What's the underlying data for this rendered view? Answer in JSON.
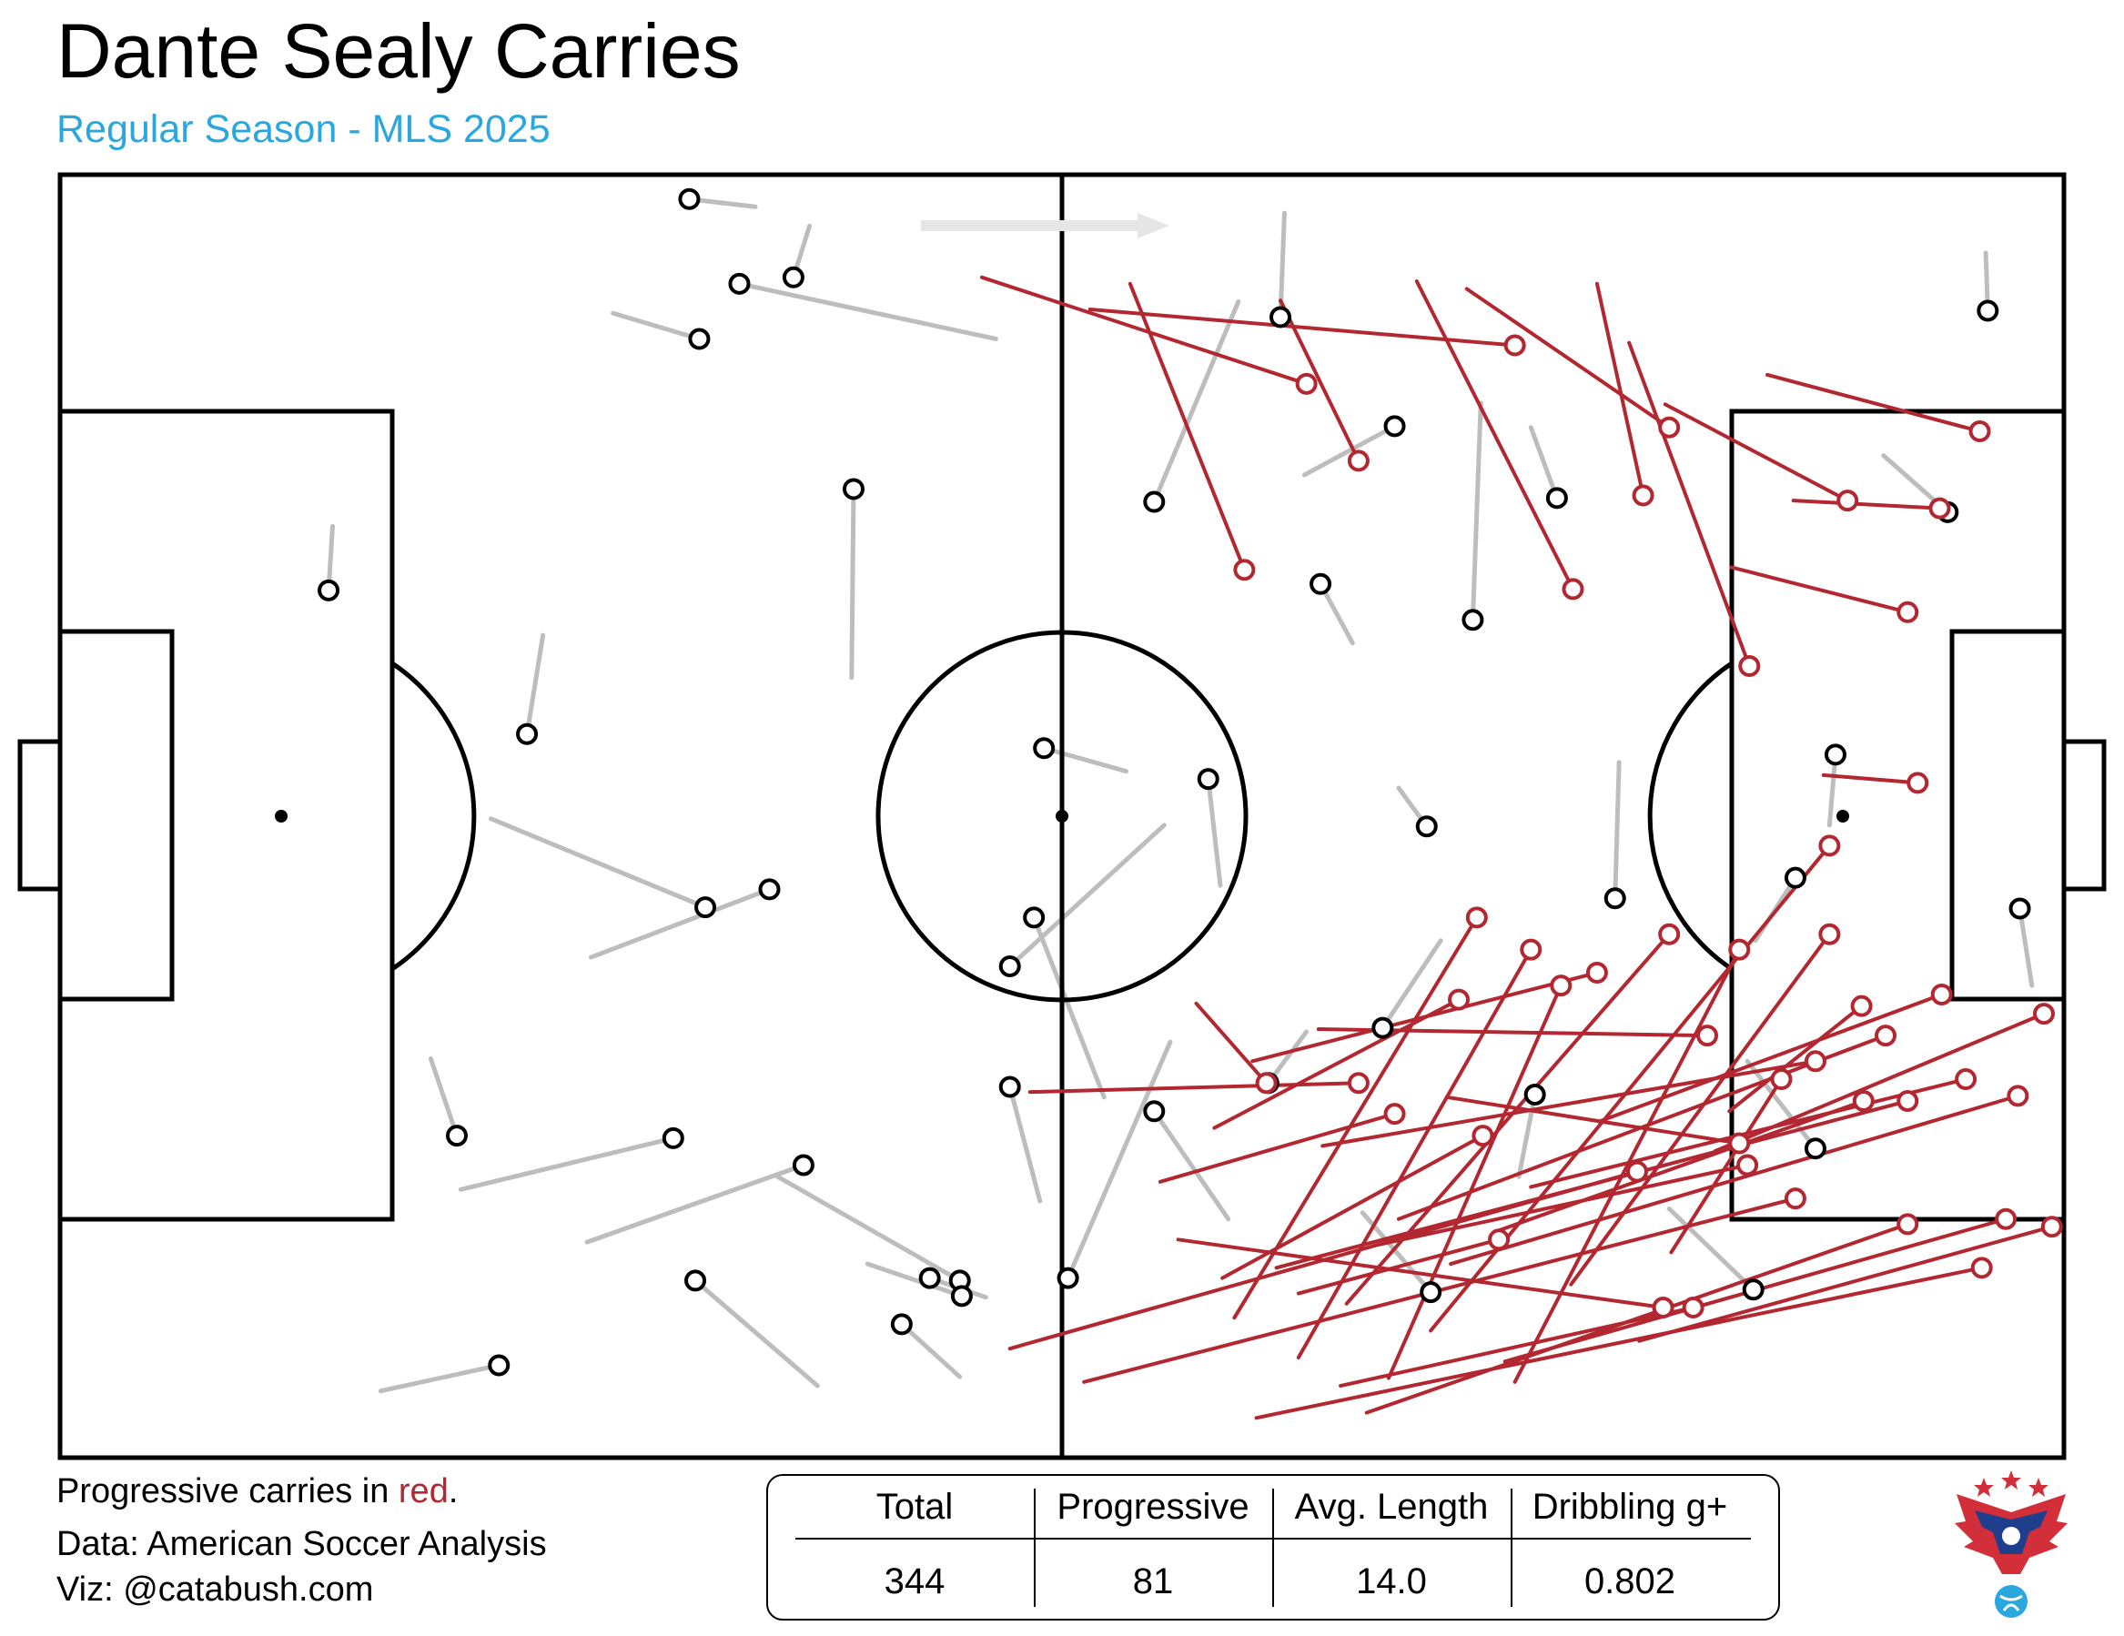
{
  "header": {
    "title": "Dante Sealy Carries",
    "subtitle": "Regular Season - MLS 2025"
  },
  "footer": {
    "legend_prefix": "Progressive carries in ",
    "legend_red": "red",
    "legend_suffix": ".",
    "data_credit": "Data: American Soccer Analysis",
    "viz_credit": "Viz: @catabush.com"
  },
  "stats": {
    "headers": [
      "Total",
      "Progressive",
      "Avg. Length",
      "Dribbling g+"
    ],
    "values": [
      "344",
      "81",
      "14.0",
      "0.802"
    ]
  },
  "colors": {
    "progressive": "#b22730",
    "regular": "#bdbdbd",
    "subtitle": "#2aa7df",
    "direction_arrow": "#e6e6e6"
  },
  "chart_data": {
    "type": "scatter",
    "description_axes": "pitch coordinates, x 0-100 (own goal to opponent goal), y 0-100",
    "xlim": [
      0,
      100
    ],
    "ylim": [
      0,
      100
    ],
    "regular_carries": [
      [
        34.7,
        97.5,
        31.4,
        98.1
      ],
      [
        37.4,
        96.0,
        36.6,
        92.0
      ],
      [
        27.6,
        89.2,
        31.9,
        87.2
      ],
      [
        46.7,
        87.2,
        33.9,
        91.5
      ],
      [
        13.6,
        72.6,
        13.4,
        67.6
      ],
      [
        24.1,
        64.1,
        23.3,
        56.4
      ],
      [
        39.5,
        60.8,
        39.6,
        75.5
      ],
      [
        21.5,
        49.8,
        32.2,
        42.9
      ],
      [
        26.5,
        39.0,
        35.4,
        44.3
      ],
      [
        18.5,
        31.1,
        19.8,
        25.1
      ],
      [
        20.0,
        20.9,
        30.6,
        24.9
      ],
      [
        26.3,
        16.8,
        37.1,
        22.8
      ],
      [
        16.0,
        5.2,
        21.9,
        7.2
      ],
      [
        37.8,
        5.6,
        31.7,
        13.8
      ],
      [
        35.7,
        22.0,
        44.9,
        13.8
      ],
      [
        40.3,
        15.1,
        45.0,
        12.6
      ],
      [
        53.2,
        53.5,
        49.1,
        55.3
      ],
      [
        55.1,
        49.3,
        47.4,
        38.3
      ],
      [
        52.1,
        28.1,
        48.6,
        42.1
      ],
      [
        48.9,
        20.0,
        47.4,
        28.9
      ],
      [
        46.2,
        12.5,
        43.4,
        14.0
      ],
      [
        44.9,
        6.3,
        42.0,
        10.4
      ],
      [
        55.4,
        32.4,
        50.3,
        14.0
      ],
      [
        58.3,
        18.6,
        54.6,
        27.0
      ],
      [
        64.5,
        63.5,
        62.9,
        68.1
      ],
      [
        62.1,
        76.6,
        66.6,
        80.4
      ],
      [
        58.8,
        90.1,
        54.6,
        74.5
      ],
      [
        61.1,
        97.0,
        60.9,
        88.9
      ],
      [
        66.8,
        52.2,
        68.2,
        49.2
      ],
      [
        70.9,
        82.2,
        70.5,
        65.3
      ],
      [
        73.4,
        80.3,
        74.7,
        74.8
      ],
      [
        77.8,
        54.2,
        77.6,
        43.6
      ],
      [
        84.6,
        40.3,
        86.6,
        45.2
      ],
      [
        84.2,
        30.9,
        87.6,
        24.1
      ],
      [
        88.3,
        49.3,
        88.6,
        54.8
      ],
      [
        91.0,
        78.1,
        94.2,
        73.7
      ],
      [
        96.1,
        93.9,
        96.2,
        89.4
      ],
      [
        98.4,
        36.8,
        97.8,
        42.8
      ],
      [
        65.0,
        19.1,
        68.4,
        12.9
      ],
      [
        72.8,
        21.9,
        73.6,
        28.3
      ],
      [
        80.3,
        19.4,
        84.5,
        13.1
      ],
      [
        68.9,
        40.3,
        66.0,
        33.5
      ],
      [
        62.2,
        33.2,
        60.3,
        29.2
      ],
      [
        57.9,
        44.6,
        57.3,
        52.9
      ]
    ],
    "progressive_carries": [
      [
        46.0,
        92.0,
        62.2,
        83.7
      ],
      [
        51.4,
        89.5,
        72.6,
        86.7
      ],
      [
        53.4,
        91.5,
        59.1,
        69.2
      ],
      [
        60.9,
        90.2,
        64.8,
        77.7
      ],
      [
        67.7,
        91.7,
        75.5,
        67.7
      ],
      [
        70.2,
        91.1,
        80.3,
        80.3
      ],
      [
        76.7,
        91.5,
        79.0,
        75.0
      ],
      [
        85.2,
        84.4,
        95.8,
        80.0
      ],
      [
        80.1,
        82.1,
        89.2,
        74.6
      ],
      [
        86.5,
        74.6,
        93.8,
        74.0
      ],
      [
        83.4,
        69.4,
        92.2,
        65.9
      ],
      [
        78.3,
        86.9,
        84.3,
        61.7
      ],
      [
        88.0,
        53.2,
        92.7,
        52.6
      ],
      [
        48.4,
        28.5,
        64.8,
        29.2
      ],
      [
        58.6,
        10.9,
        70.7,
        42.1
      ],
      [
        61.8,
        7.8,
        73.4,
        39.6
      ],
      [
        66.3,
        6.2,
        74.9,
        36.8
      ],
      [
        64.2,
        12.0,
        80.3,
        40.8
      ],
      [
        68.4,
        9.9,
        88.3,
        47.7
      ],
      [
        72.6,
        5.9,
        83.8,
        39.6
      ],
      [
        75.4,
        13.5,
        88.3,
        40.8
      ],
      [
        60.7,
        14.8,
        92.2,
        27.8
      ],
      [
        69.4,
        15.1,
        97.7,
        28.2
      ],
      [
        63.0,
        24.3,
        87.6,
        30.9
      ],
      [
        66.8,
        18.6,
        91.1,
        32.9
      ],
      [
        59.7,
        3.1,
        95.9,
        14.8
      ],
      [
        65.2,
        3.5,
        92.2,
        18.2
      ],
      [
        72.1,
        7.5,
        97.1,
        18.6
      ],
      [
        78.8,
        9.1,
        99.4,
        18.0
      ],
      [
        55.8,
        17.0,
        80.0,
        11.7
      ],
      [
        47.4,
        8.5,
        78.7,
        22.3
      ],
      [
        51.1,
        5.9,
        86.6,
        20.2
      ],
      [
        54.9,
        21.5,
        66.6,
        26.8
      ],
      [
        57.6,
        25.7,
        69.8,
        35.7
      ],
      [
        59.5,
        30.9,
        76.7,
        37.8
      ],
      [
        62.8,
        33.4,
        82.2,
        32.9
      ],
      [
        69.2,
        28.1,
        83.8,
        24.5
      ],
      [
        73.4,
        21.1,
        95.1,
        29.5
      ],
      [
        76.8,
        26.2,
        93.9,
        36.1
      ],
      [
        82.6,
        23.9,
        99.0,
        34.6
      ],
      [
        56.7,
        35.4,
        60.2,
        29.2
      ],
      [
        58.0,
        14.0,
        71.0,
        25.1
      ],
      [
        61.8,
        12.8,
        71.8,
        17.0
      ],
      [
        63.9,
        5.6,
        81.5,
        11.7
      ],
      [
        65.8,
        16.6,
        84.2,
        22.8
      ],
      [
        71.6,
        17.6,
        90.0,
        27.8
      ],
      [
        80.4,
        16.0,
        85.9,
        29.5
      ],
      [
        83.3,
        27.0,
        89.9,
        35.2
      ]
    ]
  }
}
